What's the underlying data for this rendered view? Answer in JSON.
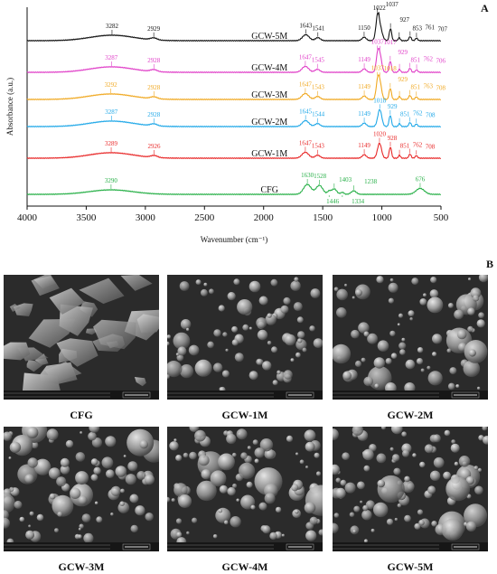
{
  "panels": {
    "a_label": "A",
    "b_label": "B"
  },
  "chart_data": {
    "type": "line",
    "xlabel": "Wavenumber (cm⁻¹)",
    "ylabel": "Absorbance (a.u.)",
    "xlim": [
      4000,
      500
    ],
    "x_ticks": [
      4000,
      3500,
      3000,
      2500,
      2000,
      1500,
      1000,
      500
    ],
    "x_tick_labels": [
      "4000",
      "3500",
      "3000",
      "2500",
      "2000",
      "1500",
      "1000",
      "500"
    ],
    "y_ticks_shown": false,
    "series": [
      {
        "name": "GCW-5M",
        "color": "#111111",
        "peaks": [
          {
            "x": 3282,
            "label": "3282",
            "h": 0.55,
            "w": 260
          },
          {
            "x": 2929,
            "label": "2929",
            "h": 0.2,
            "w": 40
          },
          {
            "x": 1643,
            "label": "1643",
            "h": 0.6,
            "w": 40
          },
          {
            "x": 1541,
            "label": "1541",
            "h": 0.3,
            "w": 30
          },
          {
            "x": 1150,
            "label": "1150",
            "h": 0.35,
            "w": 25
          },
          {
            "x": 1022,
            "label": "1022",
            "h": 1.6,
            "w": 30
          },
          {
            "x": 1037,
            "label": "1037",
            "h": 1.5,
            "w": 18
          },
          {
            "x": 927,
            "label": "927",
            "h": 1.2,
            "w": 14
          },
          {
            "x": 853,
            "label": "853",
            "h": 0.3,
            "w": 12
          },
          {
            "x": 761,
            "label": "761",
            "h": 0.4,
            "w": 14
          },
          {
            "x": 707,
            "label": "707",
            "h": 0.25,
            "w": 14
          }
        ]
      },
      {
        "name": "GCW-4M",
        "color": "#e040c8",
        "peaks": [
          {
            "x": 3287,
            "label": "3287",
            "h": 0.55,
            "w": 260
          },
          {
            "x": 2928,
            "label": "2928",
            "h": 0.2,
            "w": 40
          },
          {
            "x": 1647,
            "label": "1647",
            "h": 0.6,
            "w": 40
          },
          {
            "x": 1545,
            "label": "1545",
            "h": 0.3,
            "w": 30
          },
          {
            "x": 1149,
            "label": "1149",
            "h": 0.35,
            "w": 25
          },
          {
            "x": 1037,
            "label": "1037",
            "h": 1.4,
            "w": 18
          },
          {
            "x": 1017,
            "label": "1017",
            "h": 1.7,
            "w": 22
          },
          {
            "x": 929,
            "label": "929",
            "h": 1.1,
            "w": 14
          },
          {
            "x": 851,
            "label": "851",
            "h": 0.3,
            "w": 12
          },
          {
            "x": 762,
            "label": "762",
            "h": 0.4,
            "w": 14
          },
          {
            "x": 706,
            "label": "706",
            "h": 0.25,
            "w": 14
          }
        ]
      },
      {
        "name": "GCW-3M",
        "color": "#f0a820",
        "peaks": [
          {
            "x": 3292,
            "label": "3292",
            "h": 0.55,
            "w": 260
          },
          {
            "x": 2928,
            "label": "2928",
            "h": 0.2,
            "w": 40
          },
          {
            "x": 1647,
            "label": "1647",
            "h": 0.6,
            "w": 40
          },
          {
            "x": 1543,
            "label": "1543",
            "h": 0.3,
            "w": 30
          },
          {
            "x": 1149,
            "label": "1149",
            "h": 0.35,
            "w": 25
          },
          {
            "x": 1037,
            "label": "1037",
            "h": 1.4,
            "w": 18
          },
          {
            "x": 1018,
            "label": "1018",
            "h": 1.7,
            "w": 22
          },
          {
            "x": 929,
            "label": "929",
            "h": 1.1,
            "w": 14
          },
          {
            "x": 851,
            "label": "851",
            "h": 0.3,
            "w": 12
          },
          {
            "x": 763,
            "label": "763",
            "h": 0.4,
            "w": 14
          },
          {
            "x": 708,
            "label": "708",
            "h": 0.25,
            "w": 14
          }
        ]
      },
      {
        "name": "GCW-2M",
        "color": "#20a8e8",
        "peaks": [
          {
            "x": 3287,
            "label": "3287",
            "h": 0.55,
            "w": 260
          },
          {
            "x": 2928,
            "label": "2928",
            "h": 0.2,
            "w": 40
          },
          {
            "x": 1645,
            "label": "1645",
            "h": 0.6,
            "w": 40
          },
          {
            "x": 1544,
            "label": "1544",
            "h": 0.3,
            "w": 30
          },
          {
            "x": 1149,
            "label": "1149",
            "h": 0.35,
            "w": 25
          },
          {
            "x": 1018,
            "label": "1018",
            "h": 1.7,
            "w": 24
          },
          {
            "x": 929,
            "label": "929",
            "h": 1.1,
            "w": 14
          },
          {
            "x": 851,
            "label": "851",
            "h": 0.3,
            "w": 12
          },
          {
            "x": 762,
            "label": "762",
            "h": 0.4,
            "w": 14
          },
          {
            "x": 708,
            "label": "708",
            "h": 0.25,
            "w": 14
          }
        ]
      },
      {
        "name": "GCW-1M",
        "color": "#e82828",
        "peaks": [
          {
            "x": 3289,
            "label": "3289",
            "h": 0.55,
            "w": 260
          },
          {
            "x": 2926,
            "label": "2926",
            "h": 0.2,
            "w": 40
          },
          {
            "x": 1647,
            "label": "1647",
            "h": 0.6,
            "w": 40
          },
          {
            "x": 1543,
            "label": "1543",
            "h": 0.3,
            "w": 30
          },
          {
            "x": 1149,
            "label": "1149",
            "h": 0.35,
            "w": 25
          },
          {
            "x": 1020,
            "label": "1020",
            "h": 1.5,
            "w": 24
          },
          {
            "x": 928,
            "label": "928",
            "h": 1.1,
            "w": 14
          },
          {
            "x": 851,
            "label": "851",
            "h": 0.3,
            "w": 12
          },
          {
            "x": 762,
            "label": "762",
            "h": 0.4,
            "w": 14
          },
          {
            "x": 708,
            "label": "708",
            "h": 0.25,
            "w": 14
          }
        ]
      },
      {
        "name": "CFG",
        "color": "#28b048",
        "peaks": [
          {
            "x": 3290,
            "label": "3290",
            "h": 0.45,
            "w": 260
          },
          {
            "x": 1630,
            "label": "1630",
            "h": 1.0,
            "w": 45
          },
          {
            "x": 1528,
            "label": "1528",
            "h": 0.9,
            "w": 40
          },
          {
            "x": 1446,
            "label": "1446",
            "h": 0.3,
            "w": 20
          },
          {
            "x": 1403,
            "label": "1403",
            "h": 0.55,
            "w": 30
          },
          {
            "x": 1334,
            "label": "1334",
            "h": 0.2,
            "w": 20
          },
          {
            "x": 1238,
            "label": "1238",
            "h": 0.35,
            "w": 30
          },
          {
            "x": 676,
            "label": "676",
            "h": 0.6,
            "w": 50
          }
        ]
      }
    ]
  },
  "sem_images": [
    {
      "caption": "CFG"
    },
    {
      "caption": "GCW-1M"
    },
    {
      "caption": "GCW-2M"
    },
    {
      "caption": "GCW-3M"
    },
    {
      "caption": "GCW-4M"
    },
    {
      "caption": "GCW-5M"
    }
  ]
}
